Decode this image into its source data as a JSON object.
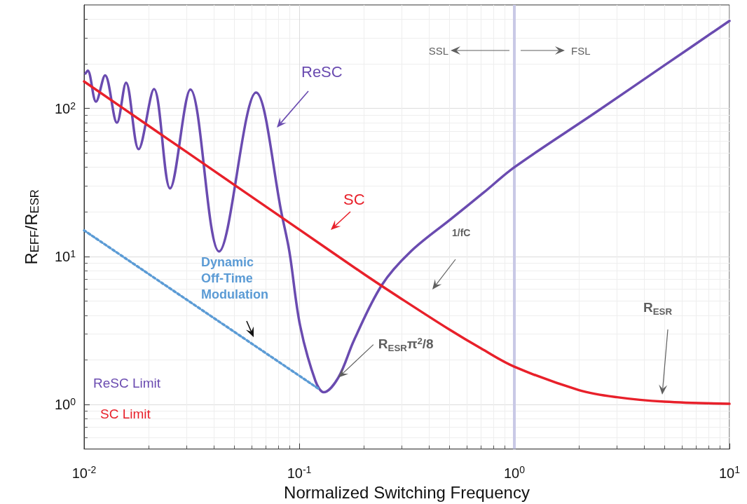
{
  "chart_data": {
    "type": "line",
    "xlabel": "Normalized Switching Frequency",
    "ylabel": "R$_{EFF}$/R$_{ESR}$",
    "log": "xy",
    "xlim": [
      0.01,
      10
    ],
    "ylim": [
      0.5,
      500
    ],
    "xticks": [
      {
        "value": 0.01,
        "label": "10$^{-2}$"
      },
      {
        "value": 0.1,
        "label": "10$^{-1}$"
      },
      {
        "value": 1,
        "label": "10$^{0}$"
      },
      {
        "value": 10,
        "label": "10$^{1}$"
      }
    ],
    "yticks": [
      {
        "value": 1,
        "label": "10$^{0}$"
      },
      {
        "value": 10,
        "label": "10$^{1}$"
      },
      {
        "value": 100,
        "label": "10$^{2}$"
      }
    ],
    "grid": true,
    "legend": false,
    "marker": "none",
    "series": [
      {
        "name": "ReSC",
        "color": "#6a4bb0",
        "x": [
          0.01015,
          0.0104,
          0.01136,
          0.01252,
          0.01421,
          0.01567,
          0.01793,
          0.02113,
          0.0251,
          0.0312,
          0.0424,
          0.063,
          0.0834,
          0.09,
          0.101,
          0.119,
          0.13,
          0.152,
          0.18,
          0.242,
          0.33,
          0.51,
          0.72,
          1.0,
          2.39,
          5,
          10
        ],
        "values": [
          172,
          180,
          111,
          167,
          80,
          149,
          53,
          135,
          28.8,
          134,
          10.8,
          128,
          18.5,
          10.8,
          3.4,
          1.44,
          1.21,
          1.52,
          2.73,
          6.4,
          10.8,
          18,
          27,
          40,
          94,
          196,
          390
        ]
      },
      {
        "name": "SC",
        "color": "#e8202a",
        "x": [
          0.01,
          0.02,
          0.03,
          0.05,
          0.1,
          0.2,
          0.3,
          0.5,
          0.7,
          1,
          2,
          3,
          5,
          10
        ],
        "values": [
          152,
          76,
          50.7,
          30.4,
          15.2,
          7.6,
          5.15,
          3.2,
          2.39,
          1.8,
          1.25,
          1.12,
          1.045,
          1.01
        ]
      },
      {
        "name": "Dynamic Off-Time Modulation",
        "color": "#5b9bd5",
        "line_style": "dotted",
        "x": [
          0.01,
          0.1227
        ],
        "values": [
          15,
          1.28
        ]
      }
    ],
    "ref_lines": [
      {
        "axis": "x",
        "value": 1,
        "color": "#c9c9e6"
      }
    ],
    "annotations": [
      "SSL",
      "FSL",
      "1/fC",
      "ReSC Limit",
      "SC Limit",
      {
        "text": "R$_{ESR}$π$^{2}$/8",
        "x": 0.152,
        "y": 1.52
      },
      "R$_{ESR}$"
    ]
  }
}
